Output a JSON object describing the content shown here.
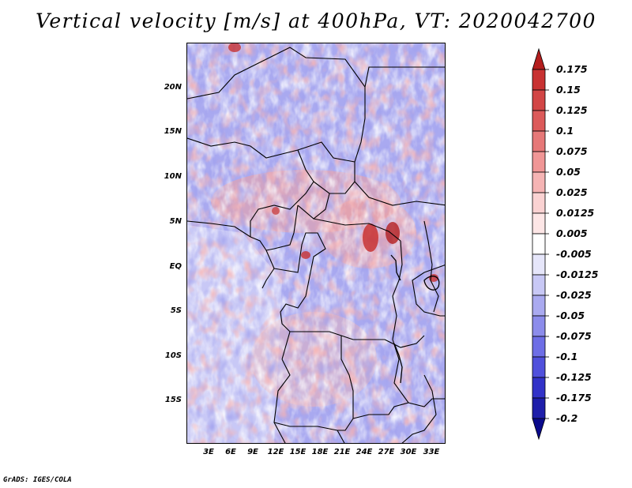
{
  "title": "Vertical velocity [m/s] at 400hPa, VT: 2020042700",
  "credit": "GrADS: IGES/COLA",
  "map": {
    "lat_labels": [
      "20N",
      "15N",
      "10N",
      "5N",
      "EQ",
      "5S",
      "10S",
      "15S"
    ],
    "lon_labels": [
      "3E",
      "6E",
      "9E",
      "12E",
      "15E",
      "18E",
      "21E",
      "24E",
      "27E",
      "30E",
      "33E"
    ],
    "lat_range": [
      -20,
      24.5
    ],
    "lon_range": [
      0,
      35
    ]
  },
  "colorbar": {
    "levels": [
      "0.175",
      "0.15",
      "0.125",
      "0.1",
      "0.075",
      "0.05",
      "0.025",
      "0.0125",
      "0.005",
      "-0.005",
      "-0.0125",
      "-0.025",
      "-0.05",
      "-0.075",
      "-0.1",
      "-0.125",
      "-0.175",
      "-0.2"
    ],
    "colors": [
      "#b41e1e",
      "#c83232",
      "#d24646",
      "#dc5a5a",
      "#e67878",
      "#f09696",
      "#f5b4b4",
      "#fad2d2",
      "#fde6e6",
      "#ffffff",
      "#e6e6fa",
      "#c8c8f5",
      "#aaaaf0",
      "#8c8ceb",
      "#6e6ee6",
      "#5050dc",
      "#3232c8",
      "#1e1eaa",
      "#0a0a8c"
    ]
  }
}
